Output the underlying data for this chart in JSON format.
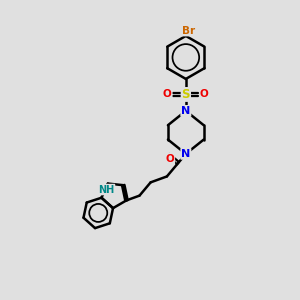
{
  "bg_color": "#e0e0e0",
  "atom_colors": {
    "C": "#000000",
    "N": "#0000ee",
    "O": "#ee0000",
    "S": "#cccc00",
    "Br": "#cc6600",
    "H": "#008888"
  },
  "bond_color": "#000000",
  "bond_width": 1.8,
  "figsize": [
    3.0,
    3.0
  ],
  "dpi": 100,
  "xlim": [
    0,
    10
  ],
  "ylim": [
    0,
    10
  ]
}
